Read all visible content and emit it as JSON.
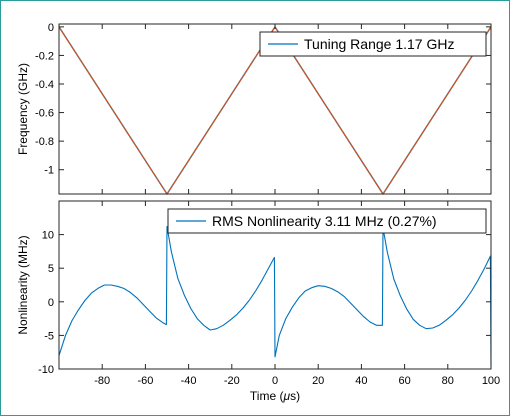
{
  "chart_data": [
    {
      "type": "line",
      "title": "",
      "xlabel": "",
      "ylabel": "Frequency (GHz)",
      "xlim": [
        -100,
        100
      ],
      "ylim": [
        -1.17,
        0.02
      ],
      "yticks": [
        0,
        -0.2,
        -0.4,
        -0.6,
        -0.8,
        -1
      ],
      "ytick_labels": [
        "0",
        "-0.2",
        "-0.4",
        "-0.6",
        "-0.8",
        "-1"
      ],
      "legend_location": "top-right",
      "grid": false,
      "series": [
        {
          "name": "Tuning Range 1.17 GHz",
          "color": "#0072bd",
          "x": [
            -100,
            -50,
            0,
            50,
            100
          ],
          "y": [
            0,
            -1.17,
            0,
            -1.17,
            0
          ]
        },
        {
          "color": "#d95319",
          "x": [
            -100,
            -50,
            0,
            50,
            100
          ],
          "y": [
            0,
            -1.17,
            0,
            -1.17,
            0
          ]
        }
      ]
    },
    {
      "type": "line",
      "title": "",
      "xlabel": "Time (μs)",
      "xlabel_parts": [
        "Time (",
        "μ",
        "s)"
      ],
      "ylabel": "Nonlinearity (MHz)",
      "xlim": [
        -100,
        100
      ],
      "ylim": [
        -10,
        15
      ],
      "xticks": [
        -80,
        -60,
        -40,
        -20,
        0,
        20,
        40,
        60,
        80,
        100
      ],
      "xtick_labels": [
        "-80",
        "-60",
        "-40",
        "-20",
        "0",
        "20",
        "40",
        "60",
        "80",
        "100"
      ],
      "yticks": [
        10,
        5,
        0,
        -5,
        -10
      ],
      "ytick_labels": [
        "10",
        "5",
        "0",
        "-5",
        "-10"
      ],
      "legend_location": "top-right",
      "grid": false,
      "series": [
        {
          "name": "RMS Nonlinearity 3.11 MHz (0.27%)",
          "color": "#0072bd",
          "x": [
            -100,
            -97,
            -94,
            -91,
            -88,
            -85,
            -82,
            -79,
            -76,
            -73,
            -70,
            -67,
            -64,
            -61,
            -58,
            -55,
            -52,
            -50.3,
            -50,
            -48,
            -45,
            -42,
            -39,
            -36,
            -33,
            -30,
            -27,
            -24,
            -21,
            -18,
            -15,
            -12,
            -9,
            -6,
            -3,
            -0.3,
            0,
            2,
            5,
            8,
            11,
            14,
            17,
            20,
            23,
            26,
            29,
            32,
            35,
            38,
            41,
            44,
            47,
            49.7,
            50,
            52,
            55,
            58,
            61,
            64,
            67,
            70,
            73,
            76,
            79,
            82,
            85,
            88,
            91,
            94,
            97,
            99.7,
            100
          ],
          "y": [
            -8,
            -5,
            -2.8,
            -1.2,
            0.2,
            1.3,
            2.0,
            2.5,
            2.5,
            2.3,
            2.0,
            1.4,
            0.6,
            -0.4,
            -1.4,
            -2.4,
            -3.1,
            -3.4,
            11.2,
            7.5,
            3.5,
            1.0,
            -1.0,
            -2.5,
            -3.5,
            -4.2,
            -4.0,
            -3.5,
            -2.8,
            -2.0,
            -1.0,
            0.2,
            1.6,
            3.2,
            5.0,
            6.6,
            -8.2,
            -5.0,
            -2.5,
            -0.8,
            0.6,
            1.6,
            2.1,
            2.4,
            2.3,
            2.0,
            1.5,
            0.8,
            -0.2,
            -1.2,
            -2.2,
            -3.0,
            -3.5,
            -3.5,
            11.0,
            7.4,
            3.4,
            0.9,
            -1.1,
            -2.6,
            -3.5,
            -4.0,
            -3.9,
            -3.5,
            -2.8,
            -2.0,
            -1.0,
            0.2,
            1.6,
            3.2,
            5.0,
            6.8,
            -9.5
          ]
        }
      ]
    }
  ]
}
